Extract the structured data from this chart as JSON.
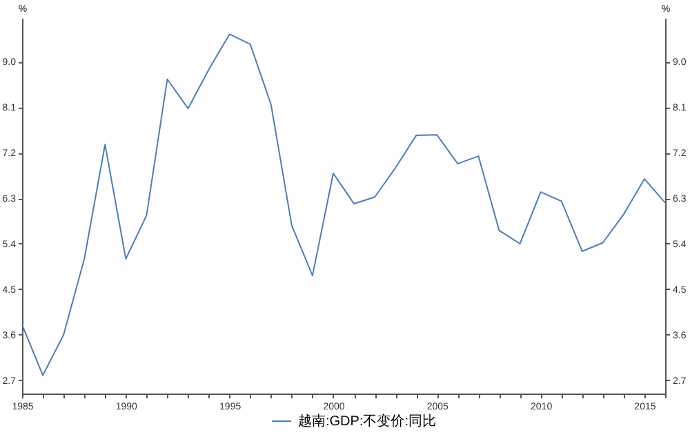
{
  "chart_data": {
    "type": "line",
    "ylabel": "%",
    "y2label": "%",
    "x": [
      1985,
      1986,
      1987,
      1988,
      1989,
      1990,
      1991,
      1992,
      1993,
      1994,
      1995,
      1996,
      1997,
      1998,
      1999,
      2000,
      2001,
      2002,
      2003,
      2004,
      2005,
      2006,
      2007,
      2008,
      2009,
      2010,
      2011,
      2012,
      2013,
      2014,
      2015,
      2016
    ],
    "series": [
      {
        "name": "越南:GDP:不变价:同比",
        "color": "#4a7ebb",
        "values": [
          3.8,
          2.8,
          3.6,
          5.1,
          7.36,
          5.1,
          5.96,
          8.65,
          8.07,
          8.84,
          9.54,
          9.34,
          8.15,
          5.76,
          4.77,
          6.79,
          6.19,
          6.32,
          6.9,
          7.54,
          7.55,
          6.98,
          7.13,
          5.66,
          5.4,
          6.42,
          6.24,
          5.25,
          5.42,
          5.98,
          6.68,
          6.21
        ]
      }
    ],
    "xlim": [
      1985,
      2016
    ],
    "xticks": [
      1985,
      {
        "value": 1986,
        "label": null
      },
      {
        "value": 1987,
        "label": null
      },
      {
        "value": 1988,
        "label": null
      },
      {
        "value": 1989,
        "label": null
      },
      1990,
      {
        "value": 1991,
        "label": null
      },
      {
        "value": 1992,
        "label": null
      },
      {
        "value": 1993,
        "label": null
      },
      {
        "value": 1994,
        "label": null
      },
      1995,
      {
        "value": 1996,
        "label": null
      },
      {
        "value": 1997,
        "label": null
      },
      {
        "value": 1998,
        "label": null
      },
      {
        "value": 1999,
        "label": null
      },
      2000,
      {
        "value": 2001,
        "label": null
      },
      {
        "value": 2002,
        "label": null
      },
      {
        "value": 2003,
        "label": null
      },
      {
        "value": 2004,
        "label": null
      },
      2005,
      {
        "value": 2006,
        "label": null
      },
      {
        "value": 2007,
        "label": null
      },
      {
        "value": 2008,
        "label": null
      },
      {
        "value": 2009,
        "label": null
      },
      2010,
      {
        "value": 2011,
        "label": null
      },
      {
        "value": 2012,
        "label": null
      },
      {
        "value": 2013,
        "label": null
      },
      {
        "value": 2014,
        "label": null
      },
      2015,
      {
        "value": 2016,
        "label": null
      }
    ],
    "ylim": [
      2.44,
      9.86
    ],
    "yticks": [
      {
        "value": 2.7,
        "label": "2.7"
      },
      {
        "value": 3.6,
        "label": "3.6"
      },
      {
        "value": 4.5,
        "label": "4.5"
      },
      {
        "value": 5.4,
        "label": "5.4"
      },
      {
        "value": 6.3,
        "label": "6.3"
      },
      {
        "value": 7.2,
        "label": "7.2"
      },
      {
        "value": 8.1,
        "label": "8.1"
      },
      {
        "value": 9.0,
        "label": "9.0"
      }
    ],
    "y2lim": [
      2.44,
      9.86
    ],
    "y2ticks": [
      {
        "value": 2.7,
        "label": "2.7"
      },
      {
        "value": 3.6,
        "label": "3.6"
      },
      {
        "value": 4.5,
        "label": "4.5"
      },
      {
        "value": 5.4,
        "label": "5.4"
      },
      {
        "value": 6.3,
        "label": "6.3"
      },
      {
        "value": 7.2,
        "label": "7.2"
      },
      {
        "value": 8.1,
        "label": "8.1"
      },
      {
        "value": 9.0,
        "label": "9.0"
      }
    ],
    "grid": false,
    "legend": "bottom",
    "marker": "none",
    "line_style": "solid"
  }
}
